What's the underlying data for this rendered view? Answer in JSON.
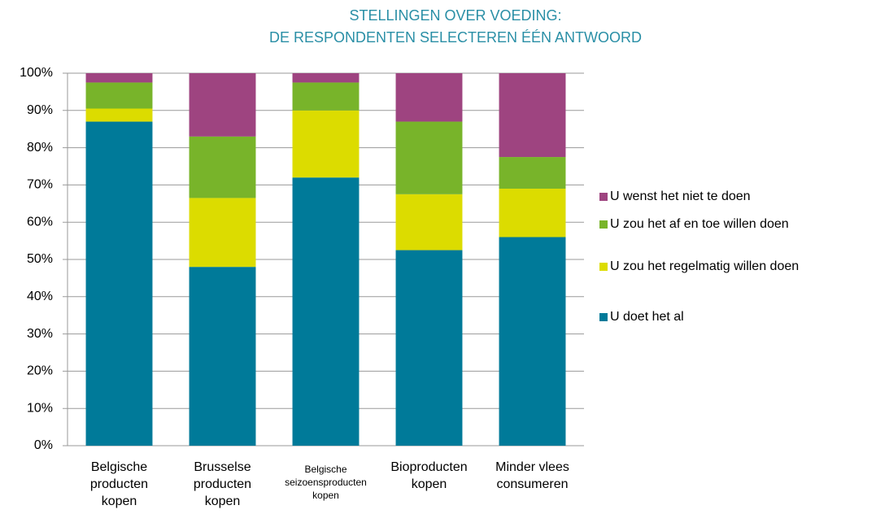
{
  "chart_data": {
    "type": "stacked_bar",
    "title": [
      "STELLINGEN OVER VOEDING:",
      "DE RESPONDENTEN SELECTEREN ÉÉN ANTWOORD"
    ],
    "categories": [
      "Belgische producten kopen",
      "Brusselse producten kopen",
      "Belgische seizoensproducten kopen",
      "Bioproducten kopen",
      "Minder vlees consumeren"
    ],
    "series": [
      {
        "name": "U doet het al",
        "color": "#007a99",
        "values": [
          87,
          48,
          72,
          52.5,
          56
        ]
      },
      {
        "name": "U zou het regelmatig willen doen",
        "color": "#dcdc00",
        "values": [
          3.5,
          18.5,
          18,
          15,
          13
        ]
      },
      {
        "name": "U zou het af en toe willen doen",
        "color": "#78b42a",
        "values": [
          7,
          16.5,
          7.5,
          19.5,
          8.5
        ]
      },
      {
        "name": "U wenst het niet te doen",
        "color": "#9e4480",
        "values": [
          2.5,
          17,
          2.5,
          13,
          22.5
        ]
      }
    ],
    "ylim": [
      0,
      100
    ],
    "yticks": [
      {
        "value": 0,
        "label": "0%"
      },
      {
        "value": 10,
        "label": "10%"
      },
      {
        "value": 20,
        "label": "20%"
      },
      {
        "value": 30,
        "label": "30%"
      },
      {
        "value": 40,
        "label": "40%"
      },
      {
        "value": 50,
        "label": "50%"
      },
      {
        "value": 60,
        "label": "60%"
      },
      {
        "value": 70,
        "label": "70%"
      },
      {
        "value": 80,
        "label": "80%"
      },
      {
        "value": 90,
        "label": "90%"
      },
      {
        "value": 100,
        "label": "100%"
      }
    ],
    "grid": true,
    "legend": "right"
  }
}
